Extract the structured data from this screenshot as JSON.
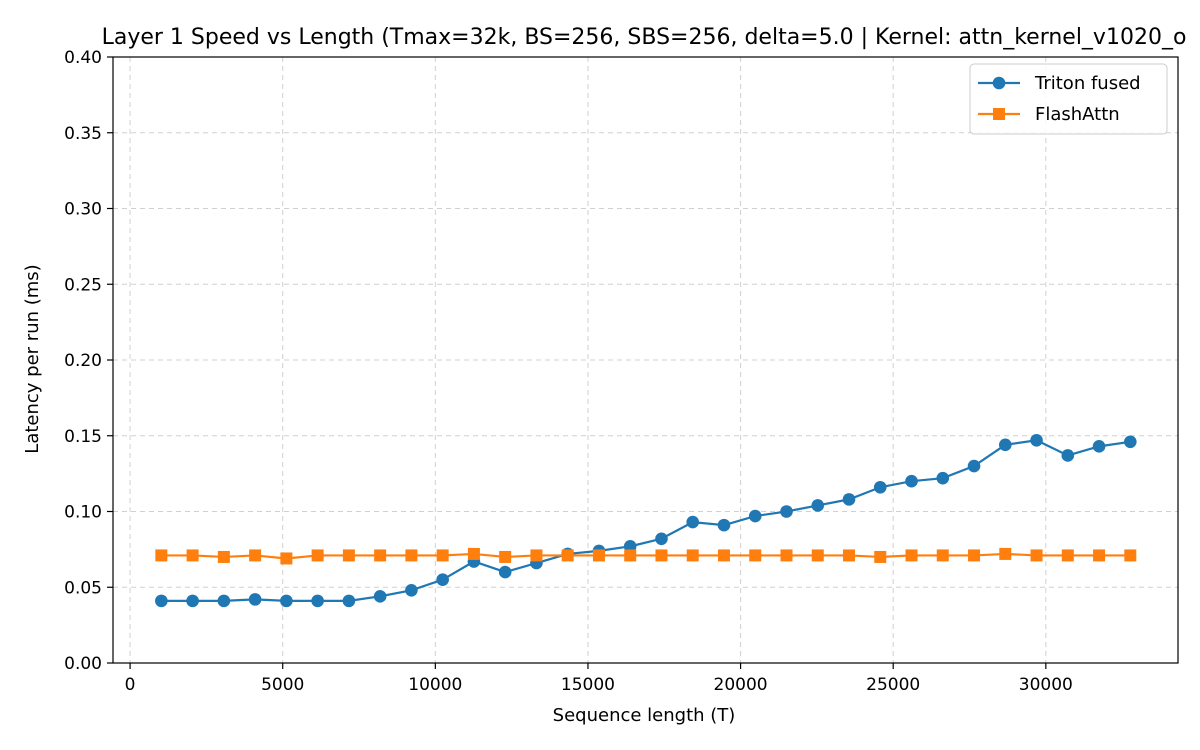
{
  "chart_data": {
    "type": "line",
    "title": "Layer 1 Speed vs Length (Tmax=32k, BS=256, SBS=256, delta=5.0 | Kernel: attn_kernel_v1020_o",
    "xlabel": "Sequence length (T)",
    "ylabel": "Latency per run (ms)",
    "xlim": [
      -560,
      34330
    ],
    "ylim": [
      0.0,
      0.4
    ],
    "xticks": [
      0,
      5000,
      10000,
      15000,
      20000,
      25000,
      30000
    ],
    "yticks": [
      0.0,
      0.05,
      0.1,
      0.15,
      0.2,
      0.25,
      0.3,
      0.35,
      0.4
    ],
    "ytick_labels": [
      "0.00",
      "0.05",
      "0.10",
      "0.15",
      "0.20",
      "0.25",
      "0.30",
      "0.35",
      "0.40"
    ],
    "grid": true,
    "legend_position": "top-right",
    "x": [
      1024,
      2048,
      3072,
      4096,
      5120,
      6144,
      7168,
      8192,
      9216,
      10240,
      11264,
      12288,
      13312,
      14336,
      15360,
      16384,
      17408,
      18432,
      19456,
      20480,
      21504,
      22528,
      23552,
      24576,
      25600,
      26624,
      27648,
      28672,
      29696,
      30720,
      31744,
      32768
    ],
    "series": [
      {
        "name": "Triton fused",
        "color": "#1f77b4",
        "marker": "circle",
        "values": [
          0.041,
          0.041,
          0.041,
          0.042,
          0.041,
          0.041,
          0.041,
          0.044,
          0.048,
          0.055,
          0.067,
          0.06,
          0.066,
          0.072,
          0.074,
          0.077,
          0.082,
          0.093,
          0.091,
          0.097,
          0.1,
          0.104,
          0.108,
          0.116,
          0.12,
          0.122,
          0.13,
          0.144,
          0.147,
          0.137,
          0.143,
          0.146
        ]
      },
      {
        "name": "FlashAttn",
        "color": "#ff7f0e",
        "marker": "square",
        "values": [
          0.071,
          0.071,
          0.07,
          0.071,
          0.069,
          0.071,
          0.071,
          0.071,
          0.071,
          0.071,
          0.072,
          0.07,
          0.071,
          0.071,
          0.071,
          0.071,
          0.071,
          0.071,
          0.071,
          0.071,
          0.071,
          0.071,
          0.071,
          0.07,
          0.071,
          0.071,
          0.071,
          0.072,
          0.071,
          0.071,
          0.071,
          0.071
        ]
      }
    ]
  }
}
